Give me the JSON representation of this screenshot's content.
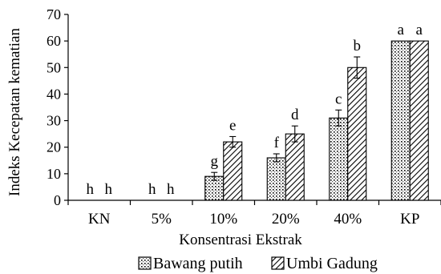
{
  "chart_data": {
    "type": "bar",
    "xlabel": "Konsentrasi Ekstrak",
    "ylabel": "Indeks Kecepatan kematian",
    "ylim": [
      0,
      70
    ],
    "yticks": [
      0,
      10,
      20,
      30,
      40,
      50,
      60,
      70
    ],
    "categories": [
      "KN",
      "5%",
      "10%",
      "20%",
      "40%",
      "KP"
    ],
    "series": [
      {
        "name": "Bawang putih",
        "pattern": "dotted-grid",
        "values": [
          0,
          0,
          9,
          16,
          31,
          60
        ],
        "errors": [
          0,
          0,
          1.5,
          1.5,
          3,
          0
        ],
        "labels": [
          "h",
          "h",
          "g",
          "f",
          "c",
          "a"
        ]
      },
      {
        "name": "Umbi Gadung",
        "pattern": "diagonal-hatch",
        "values": [
          0,
          0,
          22,
          25,
          50,
          60
        ],
        "errors": [
          0,
          0,
          2,
          3,
          4,
          0
        ],
        "labels": [
          "h",
          "h",
          "e",
          "d",
          "b",
          "a"
        ]
      }
    ],
    "grid": false,
    "legend": "bottom"
  }
}
